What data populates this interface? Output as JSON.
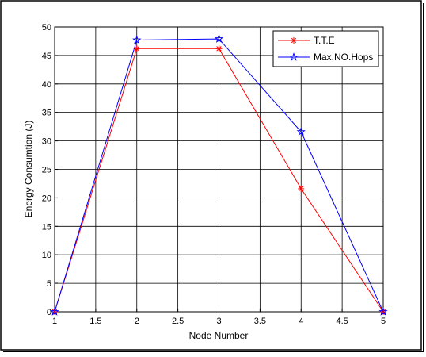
{
  "chart_data": {
    "type": "line",
    "title": "",
    "xlabel": "Node Number",
    "ylabel": "Energy Consumtion (J)",
    "xlim": [
      1,
      5
    ],
    "ylim": [
      0,
      50
    ],
    "xticks": [
      1,
      1.5,
      2,
      2.5,
      3,
      3.5,
      4,
      4.5,
      5
    ],
    "xtick_labels": [
      "1",
      "1.5",
      "2",
      "2.5",
      "3",
      "3.5",
      "4",
      "4.5",
      "5"
    ],
    "yticks": [
      0,
      5,
      10,
      15,
      20,
      25,
      30,
      35,
      40,
      45,
      50
    ],
    "ytick_labels": [
      "0",
      "5",
      "10",
      "15",
      "20",
      "25",
      "30",
      "35",
      "40",
      "45",
      "50"
    ],
    "grid": true,
    "legend": "top-right",
    "x": [
      1,
      2,
      3,
      4,
      5
    ],
    "series": [
      {
        "name": "T.T.E",
        "values": [
          0,
          46.2,
          46.2,
          21.6,
          0
        ],
        "color": "#ff0000",
        "marker": "asterisk"
      },
      {
        "name": "Max.NO.Hops",
        "values": [
          0,
          47.7,
          47.9,
          31.6,
          0
        ],
        "color": "#0000ff",
        "marker": "star"
      }
    ]
  }
}
